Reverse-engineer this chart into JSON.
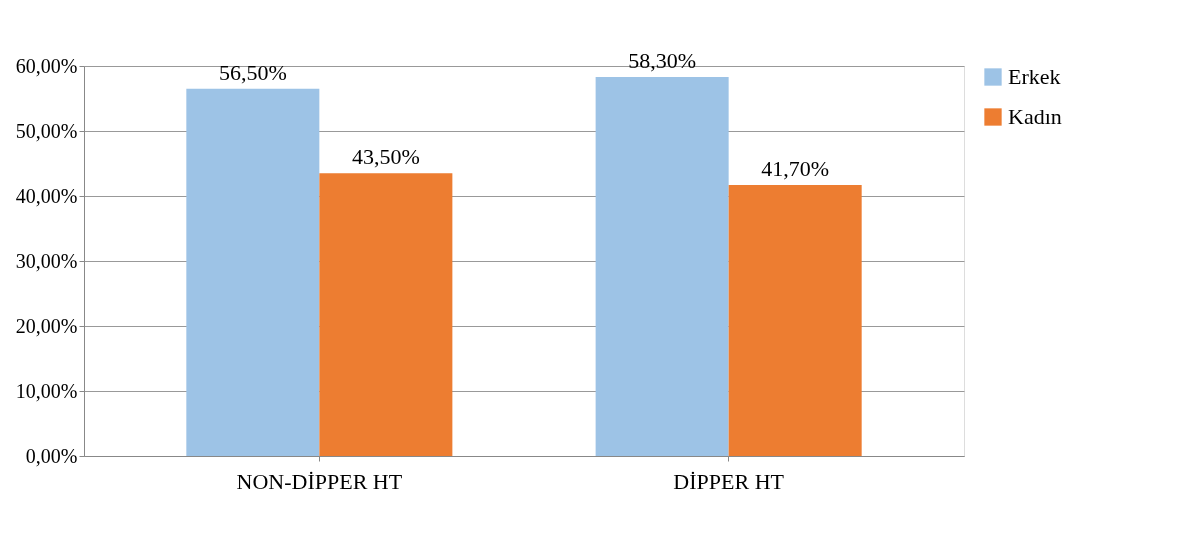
{
  "chart_data": {
    "type": "bar",
    "categories": [
      "NON-DİPPER HT",
      "DİPPER HT"
    ],
    "series": [
      {
        "name": "Erkek",
        "color": "#9dc3e6",
        "values": [
          56.5,
          58.3
        ],
        "value_labels": [
          "56,50%",
          "58,30%"
        ]
      },
      {
        "name": "Kadın",
        "color": "#ed7d31",
        "values": [
          43.5,
          41.7
        ],
        "value_labels": [
          "43,50%",
          "41,70%"
        ]
      }
    ],
    "ylim": [
      0,
      60
    ],
    "yticks": [
      {
        "value": 0,
        "label": "0,00%"
      },
      {
        "value": 10,
        "label": "10,00%"
      },
      {
        "value": 20,
        "label": "20,00%"
      },
      {
        "value": 30,
        "label": "30,00%"
      },
      {
        "value": 40,
        "label": "40,00%"
      },
      {
        "value": 50,
        "label": "50,00%"
      },
      {
        "value": 60,
        "label": "60,00%"
      }
    ],
    "grid": "y",
    "legend": "right"
  }
}
